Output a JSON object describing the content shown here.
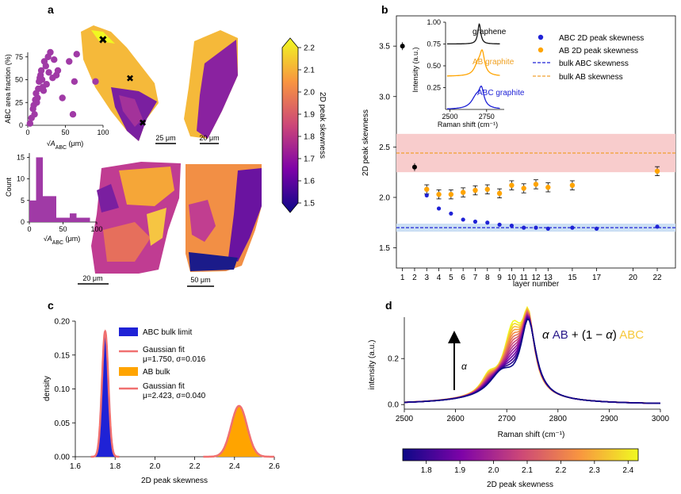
{
  "figure": {
    "panel_letters": [
      "a",
      "b",
      "c",
      "d"
    ],
    "colors": {
      "abc": "#1f22d6",
      "ab": "#ffa400",
      "ab_line": "#f0a030",
      "gauss": "#f07070",
      "band_red": "#f8cccc",
      "band_blue": "#cce0f4",
      "scatter": "#a03aa6",
      "black": "#000000",
      "graphene_line": "#111111"
    }
  },
  "chart_data": [
    {
      "panel": "a",
      "type": "scatter",
      "name": "inset_scatter",
      "ylabel": "ABC area fraction (%)",
      "xlabel_prefix": "√",
      "xlabel_var": "A",
      "xlabel_sub": "ABC",
      "xlabel_unit": " (μm)",
      "xlim": [
        0,
        100
      ],
      "ylim": [
        0,
        80
      ],
      "xticks": [
        0,
        50,
        100
      ],
      "yticks": [
        0,
        25,
        50,
        75
      ],
      "points": [
        [
          3,
          2
        ],
        [
          5,
          8
        ],
        [
          7,
          18
        ],
        [
          8,
          22
        ],
        [
          9,
          12
        ],
        [
          10,
          28
        ],
        [
          11,
          35
        ],
        [
          12,
          25
        ],
        [
          13,
          30
        ],
        [
          14,
          40
        ],
        [
          15,
          48
        ],
        [
          16,
          52
        ],
        [
          17,
          55
        ],
        [
          18,
          60
        ],
        [
          19,
          50
        ],
        [
          20,
          42
        ],
        [
          21,
          38
        ],
        [
          22,
          70
        ],
        [
          24,
          65
        ],
        [
          25,
          45
        ],
        [
          27,
          75
        ],
        [
          28,
          58
        ],
        [
          30,
          80
        ],
        [
          33,
          52
        ],
        [
          35,
          72
        ],
        [
          38,
          55
        ],
        [
          40,
          60
        ],
        [
          46,
          30
        ],
        [
          55,
          70
        ],
        [
          60,
          12
        ],
        [
          62,
          48
        ],
        [
          65,
          78
        ],
        [
          90,
          48
        ]
      ]
    },
    {
      "panel": "a",
      "type": "bar",
      "name": "inset_histogram",
      "ylabel": "Count",
      "xlabel_prefix": "√",
      "xlabel_var": "A",
      "xlabel_sub": "ABC",
      "xlabel_unit": " (μm)",
      "xlim": [
        0,
        100
      ],
      "ylim": [
        0,
        16
      ],
      "xticks": [
        0,
        50,
        100
      ],
      "yticks": [
        0,
        5,
        10,
        15
      ],
      "bin_width": 10,
      "bin_starts": [
        0,
        10,
        20,
        30,
        40,
        50,
        60,
        70,
        80,
        90
      ],
      "values": [
        5,
        15,
        6,
        6,
        1,
        1,
        2,
        1,
        1,
        0
      ]
    },
    {
      "panel": "a",
      "type": "heatmap",
      "name": "skewness_maps",
      "colorbar_label": "2D peak skewness",
      "colorbar_ticks": [
        "1.5",
        "1.6",
        "1.7",
        "1.8",
        "1.9",
        "2.0",
        "2.1",
        "2.2"
      ],
      "clim": [
        1.5,
        2.2
      ],
      "scalebars": [
        "25 μm",
        "20 μm",
        "20 μm",
        "50 μm"
      ]
    },
    {
      "panel": "b",
      "type": "scatter",
      "name": "skewness_vs_layers",
      "xlabel": "layer number",
      "ylabel": "2D peak skewness",
      "xlim": [
        0.5,
        23.5
      ],
      "ylim": [
        1.3,
        3.8
      ],
      "xticks": [
        1,
        2,
        3,
        4,
        5,
        6,
        7,
        8,
        9,
        10,
        11,
        12,
        13,
        15,
        17,
        20,
        22
      ],
      "yticks": [
        1.5,
        2.0,
        2.5,
        3.0,
        3.5
      ],
      "reference_points": [
        [
          1,
          3.5
        ],
        [
          2,
          2.3
        ]
      ],
      "series": [
        {
          "name": "ABC 2D peak skewness",
          "x": [
            3,
            4,
            5,
            6,
            7,
            8,
            9,
            10,
            11,
            12,
            13,
            15,
            17,
            22
          ],
          "y": [
            2.02,
            1.89,
            1.84,
            1.78,
            1.76,
            1.75,
            1.73,
            1.72,
            1.7,
            1.7,
            1.69,
            1.7,
            1.69,
            1.71
          ]
        },
        {
          "name": "AB 2D peak skewness",
          "x": [
            3,
            4,
            5,
            6,
            7,
            8,
            9,
            10,
            11,
            12,
            13,
            15,
            22
          ],
          "y": [
            2.08,
            2.03,
            2.03,
            2.05,
            2.07,
            2.08,
            2.04,
            2.12,
            2.09,
            2.13,
            2.1,
            2.12,
            2.26
          ],
          "err": 0.045
        }
      ],
      "lines": [
        {
          "name": "bulk ABC skewness",
          "y": 1.7,
          "band": [
            1.66,
            1.74
          ]
        },
        {
          "name": "bulk AB skewness",
          "y": 2.44,
          "band": [
            2.25,
            2.63
          ]
        }
      ]
    },
    {
      "panel": "b",
      "type": "line",
      "name": "raman_inset",
      "xlabel": "Raman shift (cm⁻¹)",
      "ylabel": "Intensity (a.u.)",
      "xlim": [
        2470,
        2870
      ],
      "ylim": [
        0,
        1.0
      ],
      "xticks": [
        2500,
        2750
      ],
      "yticks": [
        "0.25",
        "0.50",
        "0.75",
        "1.00"
      ],
      "series": [
        {
          "name": "graphene",
          "offset": 0.75,
          "amp": 0.23,
          "center": 2700,
          "width": 12,
          "type": "single"
        },
        {
          "name": "AB graphite",
          "offset": 0.38,
          "amp": 0.26,
          "center": 2720,
          "width": 28,
          "type": "ab"
        },
        {
          "name": "ABC graphite",
          "offset": 0.0,
          "amp": 0.25,
          "center": 2700,
          "width": 40,
          "type": "abc"
        }
      ]
    },
    {
      "panel": "c",
      "type": "bar",
      "name": "skewness_distribution",
      "xlabel": "2D peak skewness",
      "ylabel": "density",
      "xlim": [
        1.6,
        2.6
      ],
      "ylim": [
        0,
        0.2
      ],
      "xticks": [
        1.6,
        1.8,
        2.0,
        2.2,
        2.4,
        2.6
      ],
      "yticks": [
        "0.00",
        "0.05",
        "0.10",
        "0.15",
        "0.20"
      ],
      "series": [
        {
          "name": "ABC bulk limit",
          "mu": 1.75,
          "sigma": 0.016,
          "peak": 0.185
        },
        {
          "name": "AB bulk",
          "mu": 2.423,
          "sigma": 0.04,
          "peak": 0.075
        }
      ],
      "fit_labels": [
        {
          "line1": "Gaussian fit",
          "line2": "μ=1.750, σ=0.016"
        },
        {
          "line1": "Gaussian fit",
          "line2": "μ=2.423, σ=0.040"
        }
      ]
    },
    {
      "panel": "d",
      "type": "line",
      "name": "modelled_spectra",
      "xlabel": "Raman shift (cm⁻¹)",
      "ylabel": "intensity (a.u.)",
      "xlim": [
        2500,
        3000
      ],
      "ylim": [
        -0.02,
        0.38
      ],
      "xticks": [
        2500,
        2600,
        2700,
        2800,
        2900,
        3000
      ],
      "yticks": [
        "0.0",
        "0.2"
      ],
      "arrow_label": "α",
      "formula": {
        "alpha1": "α",
        "ab": "AB",
        "plus": " + (1 − ",
        "alpha2": "α",
        "close": ") ",
        "abc": "ABC"
      },
      "colorbar_label": "2D peak skewness",
      "colorbar_ticks": [
        "1.8",
        "1.9",
        "2.0",
        "2.1",
        "2.2",
        "2.3",
        "2.4"
      ],
      "clim": [
        1.73,
        2.43
      ]
    }
  ]
}
